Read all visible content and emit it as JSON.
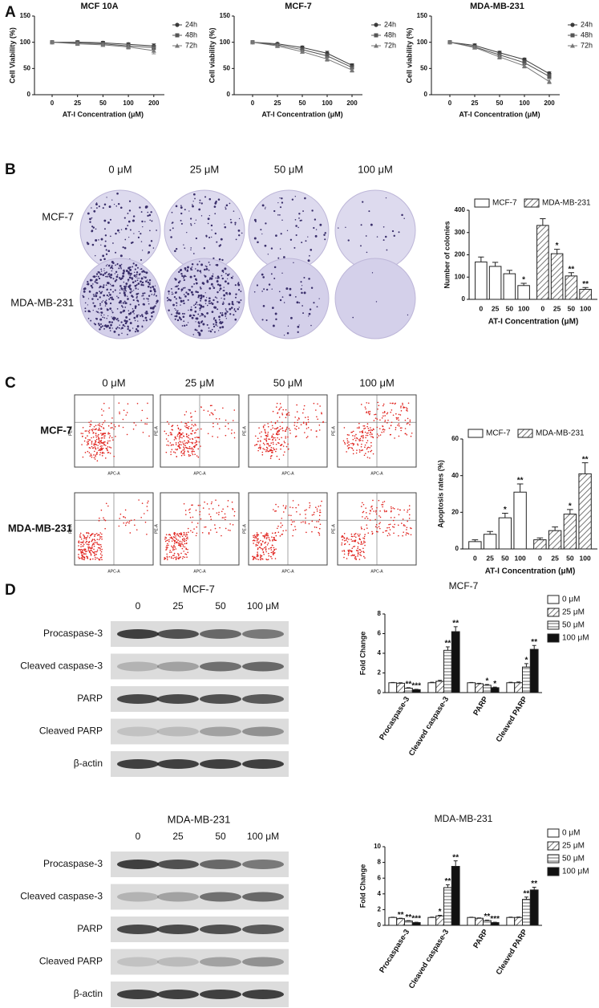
{
  "panels": [
    "A",
    "B",
    "C",
    "D"
  ],
  "colony_images": {
    "columns": [
      "0 μM",
      "25 μM",
      "50 μM",
      "100 μM"
    ],
    "rows": [
      "MCF-7",
      "MDA-MB-231"
    ]
  },
  "flow_cytometry": {
    "columns": [
      "0 μM",
      "25 μM",
      "50 μM",
      "100 μM"
    ],
    "rows": [
      "MCF-7",
      "MDA-MB-231"
    ],
    "x_axis_label": "APC-A",
    "y_axis_label": "PE-A"
  },
  "western_blots": [
    {
      "title": "MCF-7",
      "lanes": [
        "0",
        "25",
        "50",
        "100 μM"
      ],
      "rows": [
        "Procaspase-3",
        "Cleaved caspase-3",
        "PARP",
        "Cleaved PARP",
        "β-actin"
      ]
    },
    {
      "title": "MDA-MB-231",
      "lanes": [
        "0",
        "25",
        "50",
        "100 μM"
      ],
      "rows": [
        "Procaspase-3",
        "Cleaved caspase-3",
        "PARP",
        "Cleaved PARP",
        "β-actin"
      ]
    }
  ],
  "chart_data": [
    {
      "type": "line",
      "title": "MCF 10A",
      "x_label": "AT-I Concentration (μM)",
      "y_label": "Cell Viability (%)",
      "categories": [
        "0",
        "25",
        "50",
        "100",
        "200"
      ],
      "ylim": [
        0,
        150
      ],
      "yticks": [
        0,
        50,
        100,
        150
      ],
      "legend": "right",
      "series": [
        {
          "name": "24h",
          "color": "#3a3a3a",
          "marker": "circle",
          "values": [
            100,
            100,
            99,
            96,
            93
          ],
          "errors": [
            2,
            3,
            3,
            3,
            4
          ]
        },
        {
          "name": "48h",
          "color": "#555555",
          "marker": "square",
          "values": [
            100,
            99,
            97,
            93,
            90
          ],
          "errors": [
            2,
            3,
            3,
            4,
            4
          ]
        },
        {
          "name": "72h",
          "color": "#777777",
          "marker": "triangle",
          "values": [
            100,
            97,
            95,
            91,
            84
          ],
          "errors": [
            2,
            3,
            3,
            4,
            6
          ]
        }
      ]
    },
    {
      "type": "line",
      "title": "MCF-7",
      "x_label": "AT-I Concentration (μM)",
      "y_label": "Cell viability (%)",
      "categories": [
        "0",
        "25",
        "50",
        "100",
        "200"
      ],
      "ylim": [
        0,
        150
      ],
      "yticks": [
        0,
        50,
        100,
        150
      ],
      "legend": "right",
      "series": [
        {
          "name": "24h",
          "color": "#3a3a3a",
          "marker": "circle",
          "values": [
            100,
            97,
            90,
            79,
            56
          ],
          "errors": [
            2,
            2,
            3,
            4,
            3
          ]
        },
        {
          "name": "48h",
          "color": "#555555",
          "marker": "square",
          "values": [
            100,
            95,
            86,
            74,
            52
          ],
          "errors": [
            2,
            2,
            3,
            4,
            3
          ]
        },
        {
          "name": "72h",
          "color": "#777777",
          "marker": "triangle",
          "values": [
            100,
            93,
            82,
            68,
            47
          ],
          "errors": [
            2,
            3,
            3,
            4,
            4
          ]
        }
      ]
    },
    {
      "type": "line",
      "title": "MDA-MB-231",
      "x_label": "AT-I Concentration (μM)",
      "y_label": "Cell viability (%)",
      "categories": [
        "0",
        "25",
        "50",
        "100",
        "200"
      ],
      "ylim": [
        0,
        150
      ],
      "yticks": [
        0,
        50,
        100,
        150
      ],
      "legend": "right",
      "series": [
        {
          "name": "24h",
          "color": "#3a3a3a",
          "marker": "circle",
          "values": [
            100,
            94,
            80,
            67,
            40
          ],
          "errors": [
            2,
            3,
            3,
            3,
            4
          ]
        },
        {
          "name": "48h",
          "color": "#555555",
          "marker": "square",
          "values": [
            100,
            91,
            76,
            61,
            35
          ],
          "errors": [
            2,
            3,
            4,
            4,
            4
          ]
        },
        {
          "name": "72h",
          "color": "#777777",
          "marker": "triangle",
          "values": [
            100,
            90,
            72,
            55,
            25
          ],
          "errors": [
            2,
            3,
            4,
            4,
            4
          ]
        }
      ]
    },
    {
      "type": "bar",
      "group_by": "series",
      "x_label": "AT-I Concentration (μM)",
      "y_label": "Number of colonies",
      "categories": [
        "0",
        "25",
        "50",
        "100"
      ],
      "ylim": [
        0,
        400
      ],
      "yticks": [
        0,
        100,
        200,
        300,
        400
      ],
      "legend": "top",
      "series": [
        {
          "name": "MCF-7",
          "color": "#ffffff",
          "pattern": "none",
          "values": [
            168,
            148,
            115,
            62
          ],
          "errors": [
            22,
            18,
            15,
            10
          ],
          "significance": [
            null,
            null,
            null,
            "*"
          ]
        },
        {
          "name": "MDA-MB-231",
          "color": "#ffffff",
          "pattern": "diagonal",
          "values": [
            332,
            205,
            105,
            45
          ],
          "errors": [
            30,
            20,
            15,
            8
          ],
          "significance": [
            null,
            "*",
            "**",
            "**"
          ]
        }
      ]
    },
    {
      "type": "bar",
      "group_by": "series",
      "x_label": "AT-I Concentration (μM)",
      "y_label": "Apoptosis rates (%)",
      "categories": [
        "0",
        "25",
        "50",
        "100"
      ],
      "ylim": [
        0,
        60
      ],
      "yticks": [
        0,
        20,
        40,
        60
      ],
      "legend": "top",
      "series": [
        {
          "name": "MCF-7",
          "color": "#ffffff",
          "pattern": "none",
          "values": [
            4,
            8,
            17,
            31
          ],
          "errors": [
            1,
            1.5,
            2.5,
            4.5
          ],
          "significance": [
            null,
            null,
            "*",
            "**"
          ]
        },
        {
          "name": "MDA-MB-231",
          "color": "#ffffff",
          "pattern": "diagonal",
          "values": [
            5,
            10,
            19,
            41
          ],
          "errors": [
            1,
            2,
            2.5,
            6
          ],
          "significance": [
            null,
            null,
            "*",
            "**"
          ]
        }
      ]
    },
    {
      "type": "bar",
      "group_by": "category",
      "title": "MCF-7",
      "y_label": "Fold Change",
      "categories": [
        "Procaspase-3",
        "Cleaved caspase-3",
        "PARP",
        "Cleaved PARP"
      ],
      "ylim": [
        0,
        8
      ],
      "yticks": [
        0,
        2,
        4,
        6,
        8
      ],
      "legend": "right",
      "series": [
        {
          "name": "0 μM",
          "color": "#ffffff",
          "pattern": "none",
          "values": [
            1,
            1,
            1,
            1
          ],
          "errors": [
            0.03,
            0.05,
            0.03,
            0.05
          ],
          "significance": [
            null,
            null,
            null,
            null
          ]
        },
        {
          "name": "25 μM",
          "color": "#ffffff",
          "pattern": "diagonal",
          "values": [
            0.95,
            1.15,
            0.9,
            1.0
          ],
          "errors": [
            0.05,
            0.1,
            0.05,
            0.08
          ],
          "significance": [
            null,
            null,
            null,
            null
          ]
        },
        {
          "name": "50 μM",
          "color": "#ffffff",
          "pattern": "horizontal",
          "values": [
            0.45,
            4.3,
            0.75,
            2.6
          ],
          "errors": [
            0.05,
            0.35,
            0.08,
            0.35
          ],
          "significance": [
            "**",
            "**",
            "*",
            "*"
          ]
        },
        {
          "name": "100 μM",
          "color": "#111111",
          "pattern": "none",
          "values": [
            0.3,
            6.2,
            0.5,
            4.4
          ],
          "errors": [
            0.04,
            0.5,
            0.06,
            0.4
          ],
          "significance": [
            "***",
            "**",
            "*",
            "**"
          ]
        }
      ]
    },
    {
      "type": "bar",
      "group_by": "category",
      "title": "MDA-MB-231",
      "y_label": "Fold Change",
      "categories": [
        "Procaspase-3",
        "Cleaved caspase-3",
        "PARP",
        "Cleaved PARP"
      ],
      "ylim": [
        0,
        10
      ],
      "yticks": [
        0,
        2,
        4,
        6,
        8,
        10
      ],
      "legend": "right",
      "series": [
        {
          "name": "0 μM",
          "color": "#ffffff",
          "pattern": "none",
          "values": [
            1,
            1,
            1,
            1
          ],
          "errors": [
            0.03,
            0.05,
            0.03,
            0.05
          ],
          "significance": [
            null,
            null,
            null,
            null
          ]
        },
        {
          "name": "25 μM",
          "color": "#ffffff",
          "pattern": "diagonal",
          "values": [
            0.85,
            1.2,
            0.9,
            1.0
          ],
          "errors": [
            0.05,
            0.08,
            0.05,
            0.06
          ],
          "significance": [
            "**",
            "*",
            null,
            null
          ]
        },
        {
          "name": "50 μM",
          "color": "#ffffff",
          "pattern": "horizontal",
          "values": [
            0.55,
            4.8,
            0.6,
            3.3
          ],
          "errors": [
            0.05,
            0.35,
            0.06,
            0.3
          ],
          "significance": [
            "**",
            "**",
            "**",
            "**"
          ]
        },
        {
          "name": "100 μM",
          "color": "#111111",
          "pattern": "none",
          "values": [
            0.35,
            7.5,
            0.35,
            4.5
          ],
          "errors": [
            0.05,
            0.7,
            0.04,
            0.35
          ],
          "significance": [
            "***",
            "**",
            "***",
            "**"
          ]
        }
      ]
    }
  ]
}
